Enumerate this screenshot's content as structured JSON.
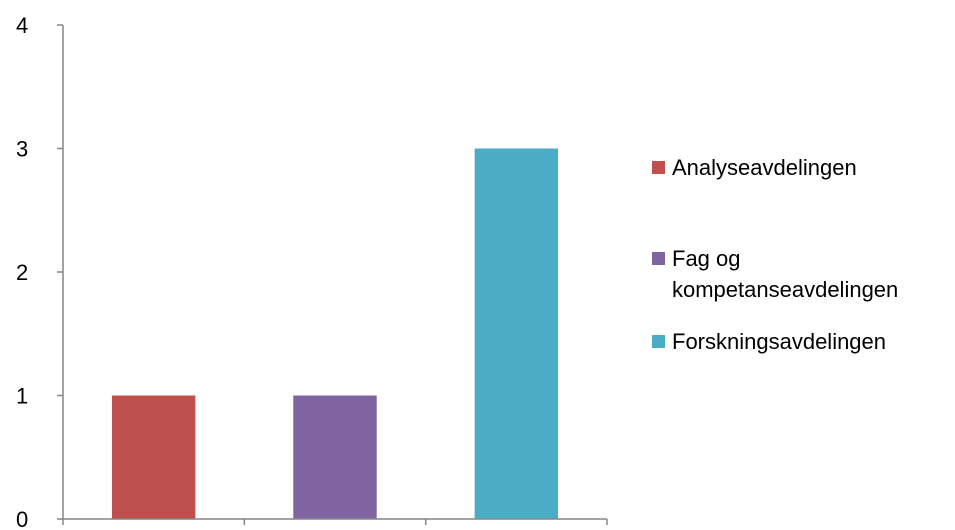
{
  "chart_data": {
    "type": "bar",
    "categories": [
      "Analyseavdelingen",
      "Fag og\nkompetanseavdelingen",
      "Forskningsavdelingen"
    ],
    "values": [
      1,
      1,
      3
    ],
    "colors": [
      "#c0504d",
      "#8064a2",
      "#4bacc6"
    ],
    "ylim": [
      0,
      4
    ],
    "yticks": [
      "0",
      "1",
      "2",
      "3",
      "4"
    ],
    "grid": false,
    "legend": {
      "placement": "right",
      "entries": [
        "Analyseavdelingen",
        "Fag og\nkompetanseavdelingen",
        "Forskningsavdelingen"
      ]
    }
  }
}
